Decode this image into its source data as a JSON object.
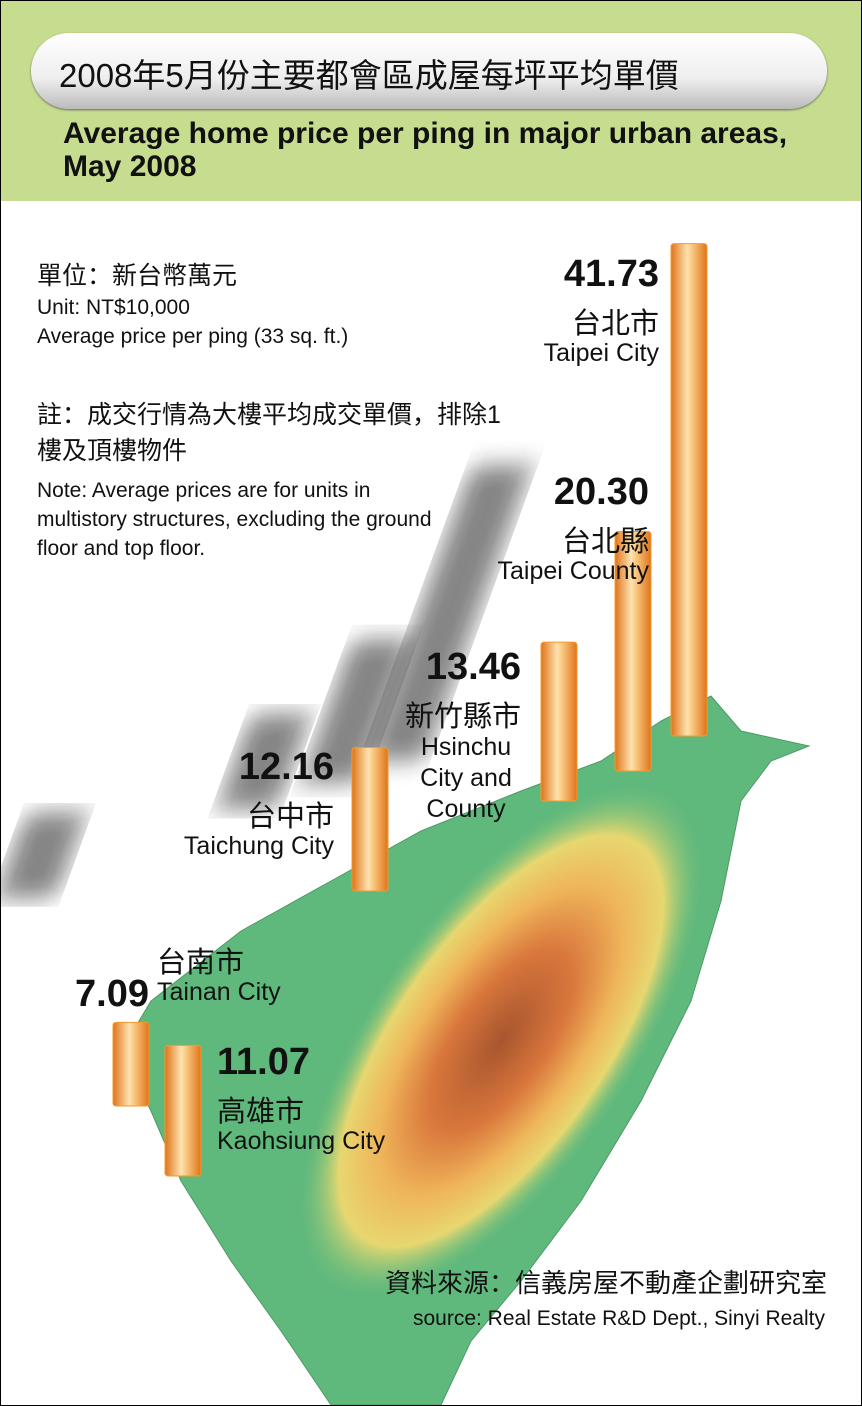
{
  "chart_data": {
    "type": "bar",
    "title": "2008年5月份主要都會區成屋每坪平均單價",
    "subtitle": "Average home price per ping in major urban areas, May 2008",
    "unit_zh": "單位：新台幣萬元",
    "unit_en": "Unit: NT$10,000",
    "unit_note": "Average price per ping (33 sq. ft.)",
    "note_zh": "註：成交行情為大樓平均成交單價，排除1樓及頂樓物件",
    "note_en": "Note: Average prices are for units in multistory structures, excluding the ground floor and top floor.",
    "source_zh": "資料來源：信義房屋不動產企劃研究室",
    "source_en": "source: Real Estate R&D Dept., Sinyi Realty",
    "categories": [
      "Taipei City",
      "Taipei County",
      "Hsinchu City and County",
      "Taichung City",
      "Tainan City",
      "Kaohsiung City"
    ],
    "categories_zh": [
      "台北市",
      "台北縣",
      "新竹縣市",
      "台中市",
      "台南市",
      "高雄市"
    ],
    "values": [
      41.73,
      20.3,
      13.46,
      12.16,
      7.09,
      11.07
    ],
    "value_labels": [
      "41.73",
      "20.30",
      "13.46",
      "12.16",
      "7.09",
      "11.07"
    ],
    "color": "#f39a2a"
  }
}
